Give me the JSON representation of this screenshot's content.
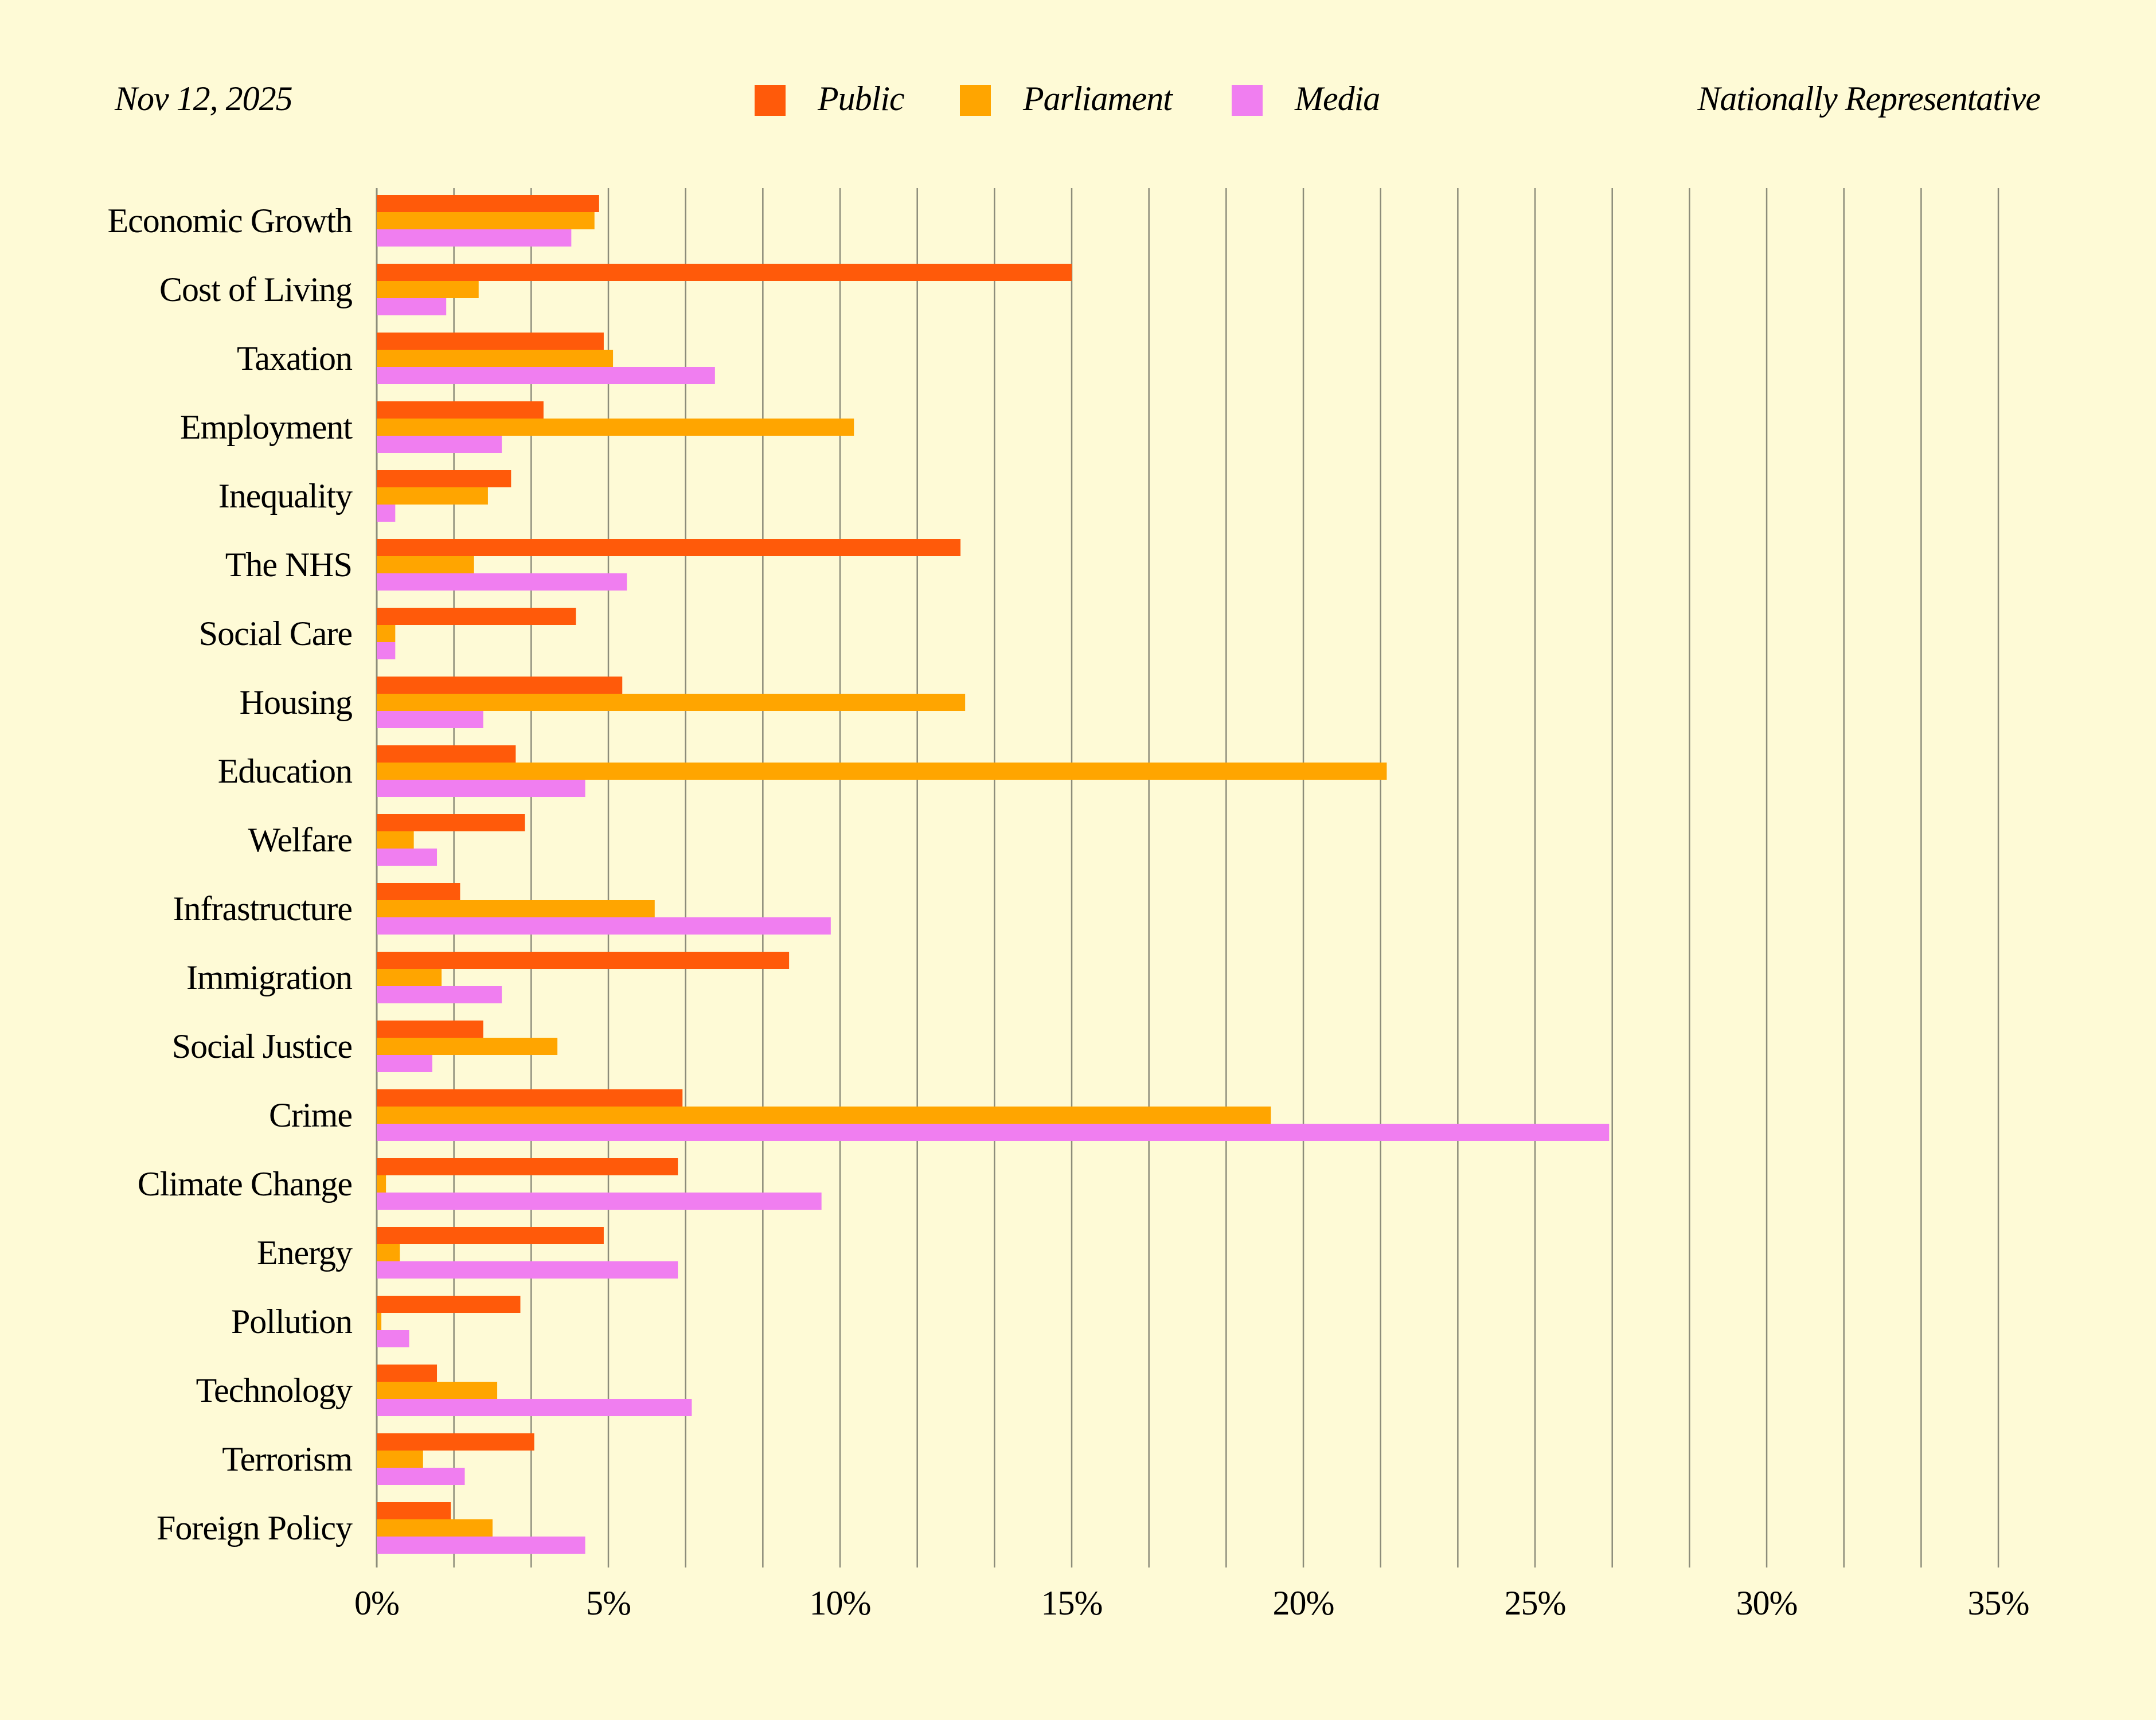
{
  "header": {
    "date": "Nov 12, 2025",
    "sample": "Nationally Representative"
  },
  "colors": {
    "background": "#FEFAD6",
    "gridline": "#8C8C7A"
  },
  "chart_data": {
    "type": "bar",
    "orientation": "horizontal",
    "categories": [
      "Economic Growth",
      "Cost of Living",
      "Taxation",
      "Employment",
      "Inequality",
      "The NHS",
      "Social Care",
      "Housing",
      "Education",
      "Welfare",
      "Infrastructure",
      "Immigration",
      "Social Justice",
      "Crime",
      "Climate Change",
      "Energy",
      "Pollution",
      "Technology",
      "Terrorism",
      "Foreign Policy"
    ],
    "series": [
      {
        "name": "Public",
        "color": "#FF5A0A",
        "values": [
          4.8,
          15.0,
          4.9,
          3.6,
          2.9,
          12.6,
          4.3,
          5.3,
          3.0,
          3.2,
          1.8,
          8.9,
          2.3,
          6.6,
          6.5,
          4.9,
          3.1,
          1.3,
          3.4,
          1.6
        ]
      },
      {
        "name": "Parliament",
        "color": "#FFA500",
        "values": [
          4.7,
          2.2,
          5.1,
          10.3,
          2.4,
          2.1,
          0.4,
          12.7,
          21.8,
          0.8,
          6.0,
          1.4,
          3.9,
          19.3,
          0.2,
          0.5,
          0.1,
          2.6,
          1.0,
          2.5
        ]
      },
      {
        "name": "Media",
        "color": "#F07EF0",
        "values": [
          4.2,
          1.5,
          7.3,
          2.7,
          0.4,
          5.4,
          0.4,
          2.3,
          4.5,
          1.3,
          9.8,
          2.7,
          1.2,
          26.6,
          9.6,
          6.5,
          0.7,
          6.8,
          1.9,
          4.5
        ]
      }
    ],
    "x_ticks": [
      "0%",
      "5%",
      "10%",
      "15%",
      "20%",
      "25%",
      "30%",
      "35%"
    ],
    "xlim": [
      0,
      35
    ],
    "minor_step": 1.6667,
    "grid": true,
    "legend_position": "top-center",
    "title": "",
    "xlabel": "",
    "ylabel": ""
  }
}
